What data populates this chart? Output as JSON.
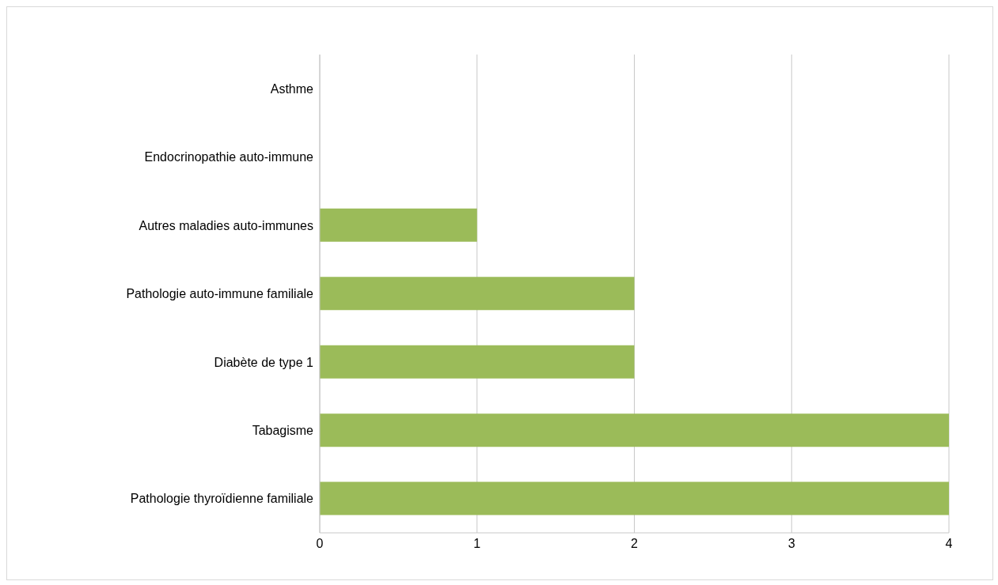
{
  "chart_data": {
    "type": "bar",
    "orientation": "horizontal",
    "categories": [
      "Asthme",
      "Endocrinopathie auto-immune",
      "Autres maladies auto-immunes",
      "Pathologie auto-immune familiale",
      "Diabète de type 1",
      "Tabagisme",
      "Pathologie thyroïdienne familiale"
    ],
    "values": [
      0,
      0,
      1,
      2,
      2,
      4,
      4
    ],
    "color": "#9bbb59",
    "xlim": [
      0,
      4
    ],
    "xticks": [
      0,
      1,
      2,
      3,
      4
    ],
    "grid": "x"
  }
}
